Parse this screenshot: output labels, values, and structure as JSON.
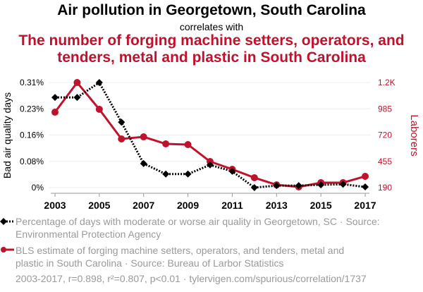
{
  "colors": {
    "series1": "#000000",
    "series2": "#c0122d"
  },
  "chart_data": {
    "type": "line",
    "title": "Air pollution in Georgetown, South Carolina",
    "subtitle": "correlates with",
    "title2": "The number of forging machine setters, operators, and tenders, metal and plastic in South Carolina",
    "x": [
      2003,
      2004,
      2005,
      2006,
      2007,
      2008,
      2009,
      2010,
      2011,
      2012,
      2013,
      2014,
      2015,
      2016,
      2017
    ],
    "xticks": [
      "2003",
      "2005",
      "2007",
      "2009",
      "2011",
      "2013",
      "2015",
      "2017"
    ],
    "ylabel": "Bad air quality days",
    "y2label": "Laborers",
    "yticks": [
      "0.31%",
      "0.23%",
      "0.16%",
      "0.08%",
      "0%"
    ],
    "y2ticks": [
      "1.2K",
      "985",
      "720",
      "455",
      "190"
    ],
    "ylim": [
      0,
      0.31
    ],
    "y2lim": [
      190,
      1250
    ],
    "series": [
      {
        "name": "Percentage of days with moderate or worse air quality in Georgetown, SC · Source: Environmental Protection Agency",
        "axis": "left",
        "values": [
          0.266,
          0.266,
          0.31,
          0.193,
          0.071,
          0.04,
          0.04,
          0.067,
          0.048,
          0.0,
          0.006,
          0.006,
          0.008,
          0.01,
          0.002
        ]
      },
      {
        "name": "BLS estimate of forging machine setters, operators, and tenders, metal and plastic in South Carolina · Source: Bureau of Larbor Statistics",
        "axis": "right",
        "values": [
          951,
          1250,
          980,
          681,
          702,
          631,
          624,
          453,
          375,
          290,
          218,
          197,
          240,
          240,
          304
        ]
      }
    ],
    "footer": "2003-2017, r=0.898, r²=0.807, p<0.01 · tylervigen.com/spurious/correlation/1737",
    "grid": true
  }
}
